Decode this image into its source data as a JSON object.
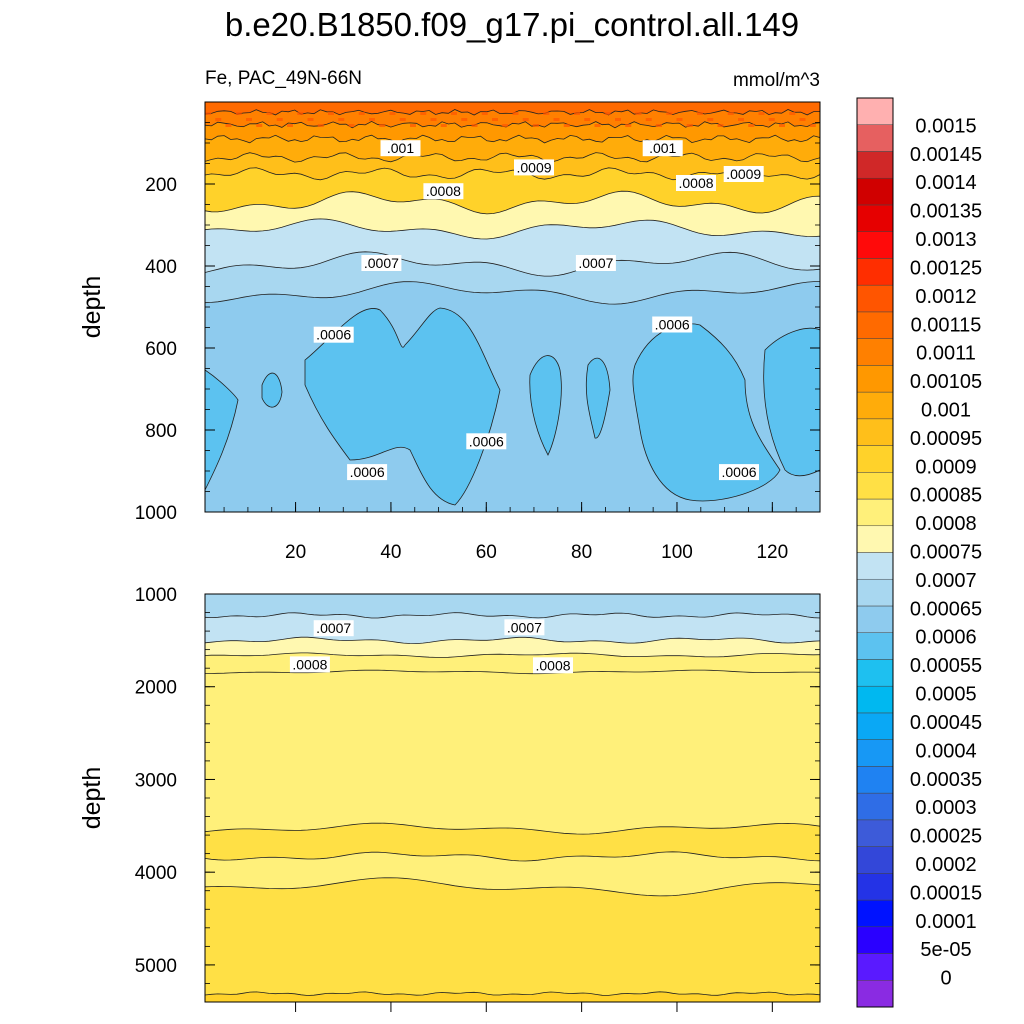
{
  "title": "b.e20.B1850.f09_g17.pi_control.all.149",
  "subtitle_left": "Fe, PAC_49N-66N",
  "subtitle_right": "mmol/m^3",
  "colors": {
    "levels": [
      "#8a2be2",
      "#5a1aff",
      "#2a00ff",
      "#0012ff",
      "#2433e6",
      "#3347d9",
      "#3d5bd9",
      "#2f6de6",
      "#1f82f2",
      "#1798f5",
      "#0aa8f5",
      "#00b8f0",
      "#1ec0f0",
      "#5cc2f0",
      "#8ecbee",
      "#a8d7f0",
      "#c2e3f3",
      "#fff8b0",
      "#fff07a",
      "#ffe045",
      "#ffd22a",
      "#ffbf1a",
      "#ffac0a",
      "#ff9800",
      "#ff8000",
      "#ff6a00",
      "#ff5500",
      "#ff2e00",
      "#ff0a0a",
      "#e60000",
      "#d00000",
      "#d02828",
      "#e66060",
      "#ffb0b0"
    ]
  },
  "chart_data": [
    {
      "type": "heatmap",
      "panel": "upper",
      "ylabel": "depth",
      "xlim": [
        1,
        130
      ],
      "ylim": [
        0,
        1000
      ],
      "y_inverted": true,
      "x_ticks": [
        20,
        40,
        60,
        80,
        100,
        120
      ],
      "y_ticks": [
        200,
        400,
        600,
        800,
        1000
      ],
      "contour_labels": [
        {
          "text": ".001",
          "x": 42,
          "y": 115
        },
        {
          "text": ".001",
          "x": 97,
          "y": 115
        },
        {
          "text": ".0009",
          "x": 70,
          "y": 162
        },
        {
          "text": ".0009",
          "x": 114,
          "y": 178
        },
        {
          "text": ".0008",
          "x": 51,
          "y": 220
        },
        {
          "text": ".0008",
          "x": 104,
          "y": 200
        },
        {
          "text": ".0007",
          "x": 38,
          "y": 395
        },
        {
          "text": ".0007",
          "x": 83,
          "y": 395
        },
        {
          "text": ".0006",
          "x": 28,
          "y": 570
        },
        {
          "text": ".0006",
          "x": 99,
          "y": 545
        },
        {
          "text": ".0006",
          "x": 60,
          "y": 830
        },
        {
          "text": ".0006",
          "x": 35,
          "y": 905
        },
        {
          "text": ".0006",
          "x": 113,
          "y": 905
        }
      ]
    },
    {
      "type": "heatmap",
      "panel": "lower",
      "ylabel": "depth",
      "xlim": [
        1,
        130
      ],
      "ylim": [
        1000,
        5400
      ],
      "y_inverted": true,
      "y_ticks": [
        1000,
        2000,
        3000,
        4000,
        5000
      ],
      "contour_labels": [
        {
          "text": ".0007",
          "x": 28,
          "y": 1380
        },
        {
          "text": ".0007",
          "x": 68,
          "y": 1370
        },
        {
          "text": ".0008",
          "x": 23,
          "y": 1770
        },
        {
          "text": ".0008",
          "x": 74,
          "y": 1780
        }
      ]
    }
  ],
  "colorbar": {
    "labels": [
      "0.0015",
      "0.00145",
      "0.0014",
      "0.00135",
      "0.0013",
      "0.00125",
      "0.0012",
      "0.00115",
      "0.0011",
      "0.00105",
      "0.001",
      "0.00095",
      "0.0009",
      "0.00085",
      "0.0008",
      "0.00075",
      "0.0007",
      "0.00065",
      "0.0006",
      "0.00055",
      "0.0005",
      "0.00045",
      "0.0004",
      "0.00035",
      "0.0003",
      "0.00025",
      "0.0002",
      "0.00015",
      "0.0001",
      "5e-05",
      "0"
    ]
  }
}
